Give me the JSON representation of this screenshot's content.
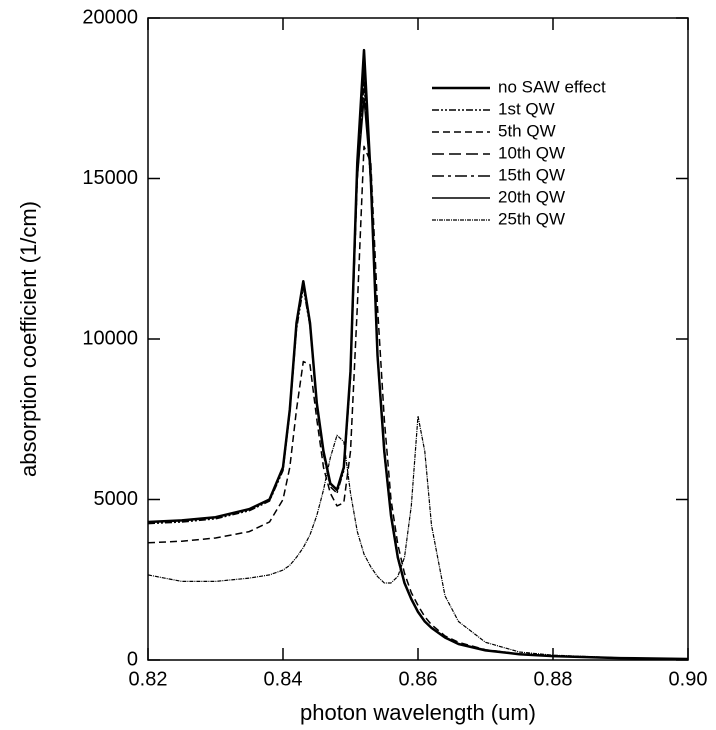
{
  "chart_data": {
    "type": "line",
    "x_label": "photon wavelength (um)",
    "y_label": "absorption coefficient (1/cm)",
    "xlim": [
      0.82,
      0.9
    ],
    "ylim": [
      0,
      20000
    ],
    "xticks": [
      0.82,
      0.84,
      0.86,
      0.88,
      {
        "value": 0.9,
        "label": "0.90"
      }
    ],
    "yticks": [
      0,
      5000,
      10000,
      15000,
      20000
    ],
    "legend": "upper-right",
    "x": [
      0.82,
      0.825,
      0.83,
      0.835,
      0.838,
      0.84,
      0.841,
      0.842,
      0.843,
      0.844,
      0.845,
      0.846,
      0.847,
      0.848,
      0.849,
      0.85,
      0.851,
      0.852,
      0.853,
      0.854,
      0.855,
      0.856,
      0.857,
      0.858,
      0.859,
      0.86,
      0.861,
      0.862,
      0.864,
      0.866,
      0.87,
      0.875,
      0.88,
      0.89,
      0.9
    ],
    "series": [
      {
        "name": "no SAW effect",
        "color": "#000000",
        "values": [
          4300,
          4350,
          4450,
          4700,
          5000,
          6000,
          7800,
          10500,
          11800,
          10500,
          8000,
          6500,
          5500,
          5300,
          6000,
          9000,
          15500,
          19000,
          15000,
          9500,
          6500,
          4500,
          3200,
          2400,
          1900,
          1500,
          1200,
          1000,
          700,
          500,
          300,
          180,
          120,
          60,
          30
        ]
      },
      {
        "name": "1st QW",
        "color": "#000000",
        "values": [
          4250,
          4300,
          4400,
          4650,
          4950,
          5900,
          7700,
          10300,
          11600,
          10400,
          7900,
          6400,
          5400,
          5200,
          5900,
          8800,
          15000,
          18000,
          14800,
          9400,
          6400,
          4450,
          3150,
          2380,
          1880,
          1480,
          1190,
          990,
          690,
          500,
          300,
          180,
          120,
          60,
          30
        ]
      },
      {
        "name": "5th QW",
        "color": "#000000",
        "values": [
          3650,
          3700,
          3800,
          4000,
          4300,
          5000,
          6000,
          7800,
          9300,
          9200,
          7500,
          6000,
          5200,
          4800,
          4900,
          6500,
          11000,
          16000,
          15500,
          11000,
          7500,
          5000,
          3600,
          2700,
          2100,
          1700,
          1350,
          1100,
          750,
          550,
          320,
          190,
          125,
          60,
          30
        ]
      },
      {
        "name": "10th QW",
        "color": "#000000",
        "values": [
          4300,
          4350,
          4450,
          4700,
          5000,
          6000,
          7800,
          10500,
          11800,
          10500,
          8000,
          6500,
          5500,
          5300,
          6000,
          9000,
          15300,
          18500,
          15000,
          9500,
          6500,
          4500,
          3200,
          2400,
          1900,
          1500,
          1200,
          1000,
          700,
          500,
          300,
          180,
          120,
          60,
          30
        ]
      },
      {
        "name": "15th QW",
        "color": "#000000",
        "values": [
          4300,
          4350,
          4450,
          4700,
          5000,
          6000,
          7800,
          10500,
          11800,
          10500,
          8000,
          6500,
          5500,
          5300,
          6000,
          9000,
          15200,
          18200,
          15000,
          9500,
          6500,
          4500,
          3200,
          2400,
          1900,
          1500,
          1200,
          1000,
          700,
          500,
          300,
          180,
          120,
          60,
          30
        ]
      },
      {
        "name": "20th QW",
        "color": "#000000",
        "values": [
          4300,
          4350,
          4450,
          4700,
          5000,
          6000,
          7800,
          10500,
          11800,
          10500,
          8000,
          6500,
          5500,
          5300,
          6000,
          9000,
          15000,
          17500,
          15000,
          9500,
          6500,
          4500,
          3200,
          2400,
          1900,
          1500,
          1200,
          1000,
          700,
          500,
          300,
          180,
          120,
          60,
          30
        ]
      },
      {
        "name": "25th QW",
        "color": "#000000",
        "values": [
          2650,
          2450,
          2450,
          2550,
          2650,
          2800,
          2950,
          3200,
          3500,
          3900,
          4500,
          5300,
          6300,
          7000,
          6800,
          5200,
          4000,
          3300,
          2900,
          2600,
          2400,
          2400,
          2600,
          3200,
          4800,
          7600,
          6500,
          4200,
          2000,
          1200,
          550,
          250,
          150,
          70,
          30
        ]
      }
    ]
  }
}
